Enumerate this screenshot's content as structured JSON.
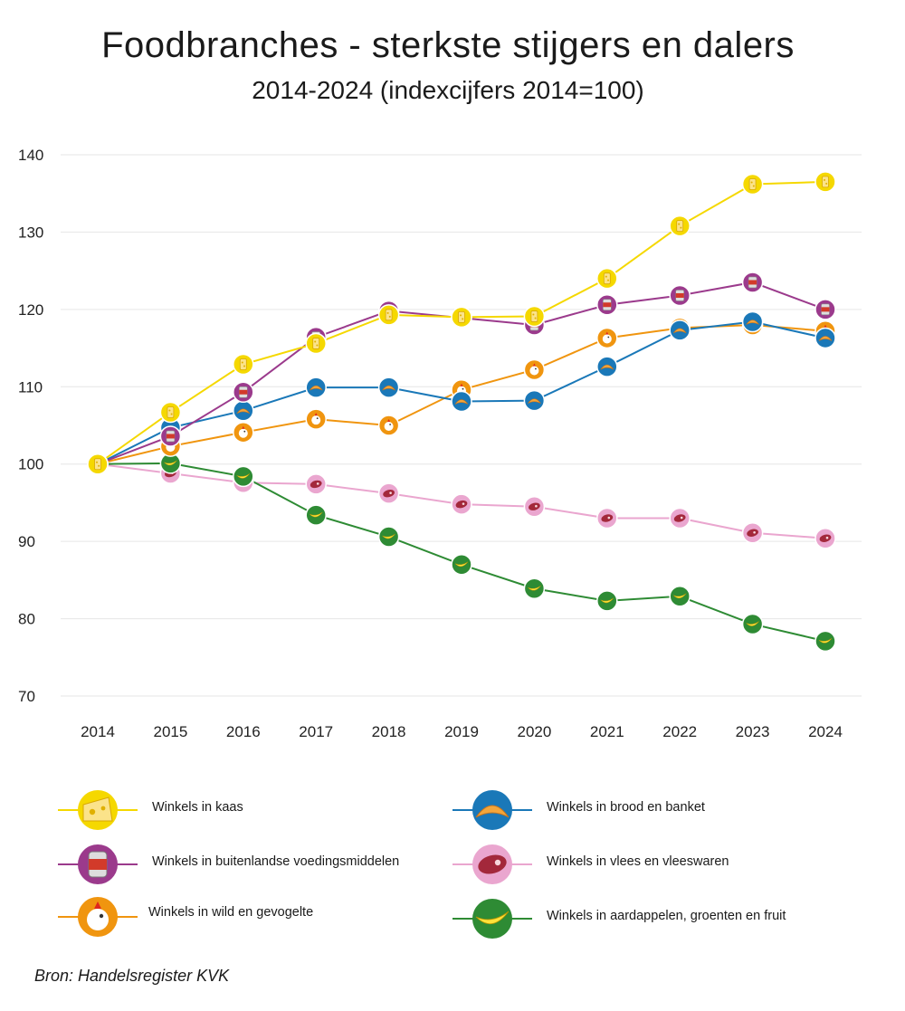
{
  "title": "Foodbranches - sterkste stijgers en dalers",
  "subtitle": "2014-2024 (indexcijfers 2014=100)",
  "source": "Bron: Handelsregister KVK",
  "chart_data": {
    "type": "line",
    "x": [
      "2014",
      "2015",
      "2016",
      "2017",
      "2018",
      "2019",
      "2020",
      "2021",
      "2022",
      "2023",
      "2024"
    ],
    "ylim": [
      70,
      140
    ],
    "yticks": [
      70,
      80,
      90,
      100,
      110,
      120,
      130,
      140
    ],
    "grid": true,
    "legend_position": "bottom",
    "series": [
      {
        "name": "Winkels in kaas",
        "color": "#f5d800",
        "icon": "cheese-icon",
        "values": [
          100,
          106.7,
          112.9,
          115.6,
          119.3,
          119.0,
          119.1,
          124.0,
          130.8,
          136.2,
          136.5
        ]
      },
      {
        "name": "Winkels in brood en banket",
        "color": "#1a78b8",
        "icon": "croissant-icon",
        "values": [
          100,
          104.7,
          106.9,
          109.9,
          109.9,
          108.1,
          108.2,
          112.6,
          117.3,
          118.4,
          116.3
        ]
      },
      {
        "name": "Winkels in buitenlandse voedingsmiddelen",
        "color": "#9b3a8c",
        "icon": "food-can-icon",
        "values": [
          100,
          103.6,
          109.3,
          116.4,
          119.8,
          118.9,
          118.0,
          120.6,
          121.8,
          123.5,
          120.0
        ]
      },
      {
        "name": "Winkels in vlees en vleeswaren",
        "color": "#eaa6cf",
        "icon": "meat-icon",
        "values": [
          100,
          98.8,
          97.6,
          97.4,
          96.2,
          94.8,
          94.5,
          93.0,
          93.0,
          91.1,
          90.4
        ]
      },
      {
        "name": "Winkels in wild en gevogelte",
        "color": "#f0950f",
        "icon": "chicken-icon",
        "values": [
          100,
          102.3,
          104.1,
          105.8,
          105.0,
          109.6,
          112.2,
          116.3,
          117.6,
          118.0,
          117.2
        ]
      },
      {
        "name": "Winkels in aardappelen, groenten en fruit",
        "color": "#2e8b34",
        "icon": "banana-icon",
        "values": [
          100,
          100.1,
          98.4,
          93.4,
          90.6,
          87.0,
          83.9,
          82.3,
          82.9,
          79.3,
          77.1
        ]
      }
    ]
  }
}
